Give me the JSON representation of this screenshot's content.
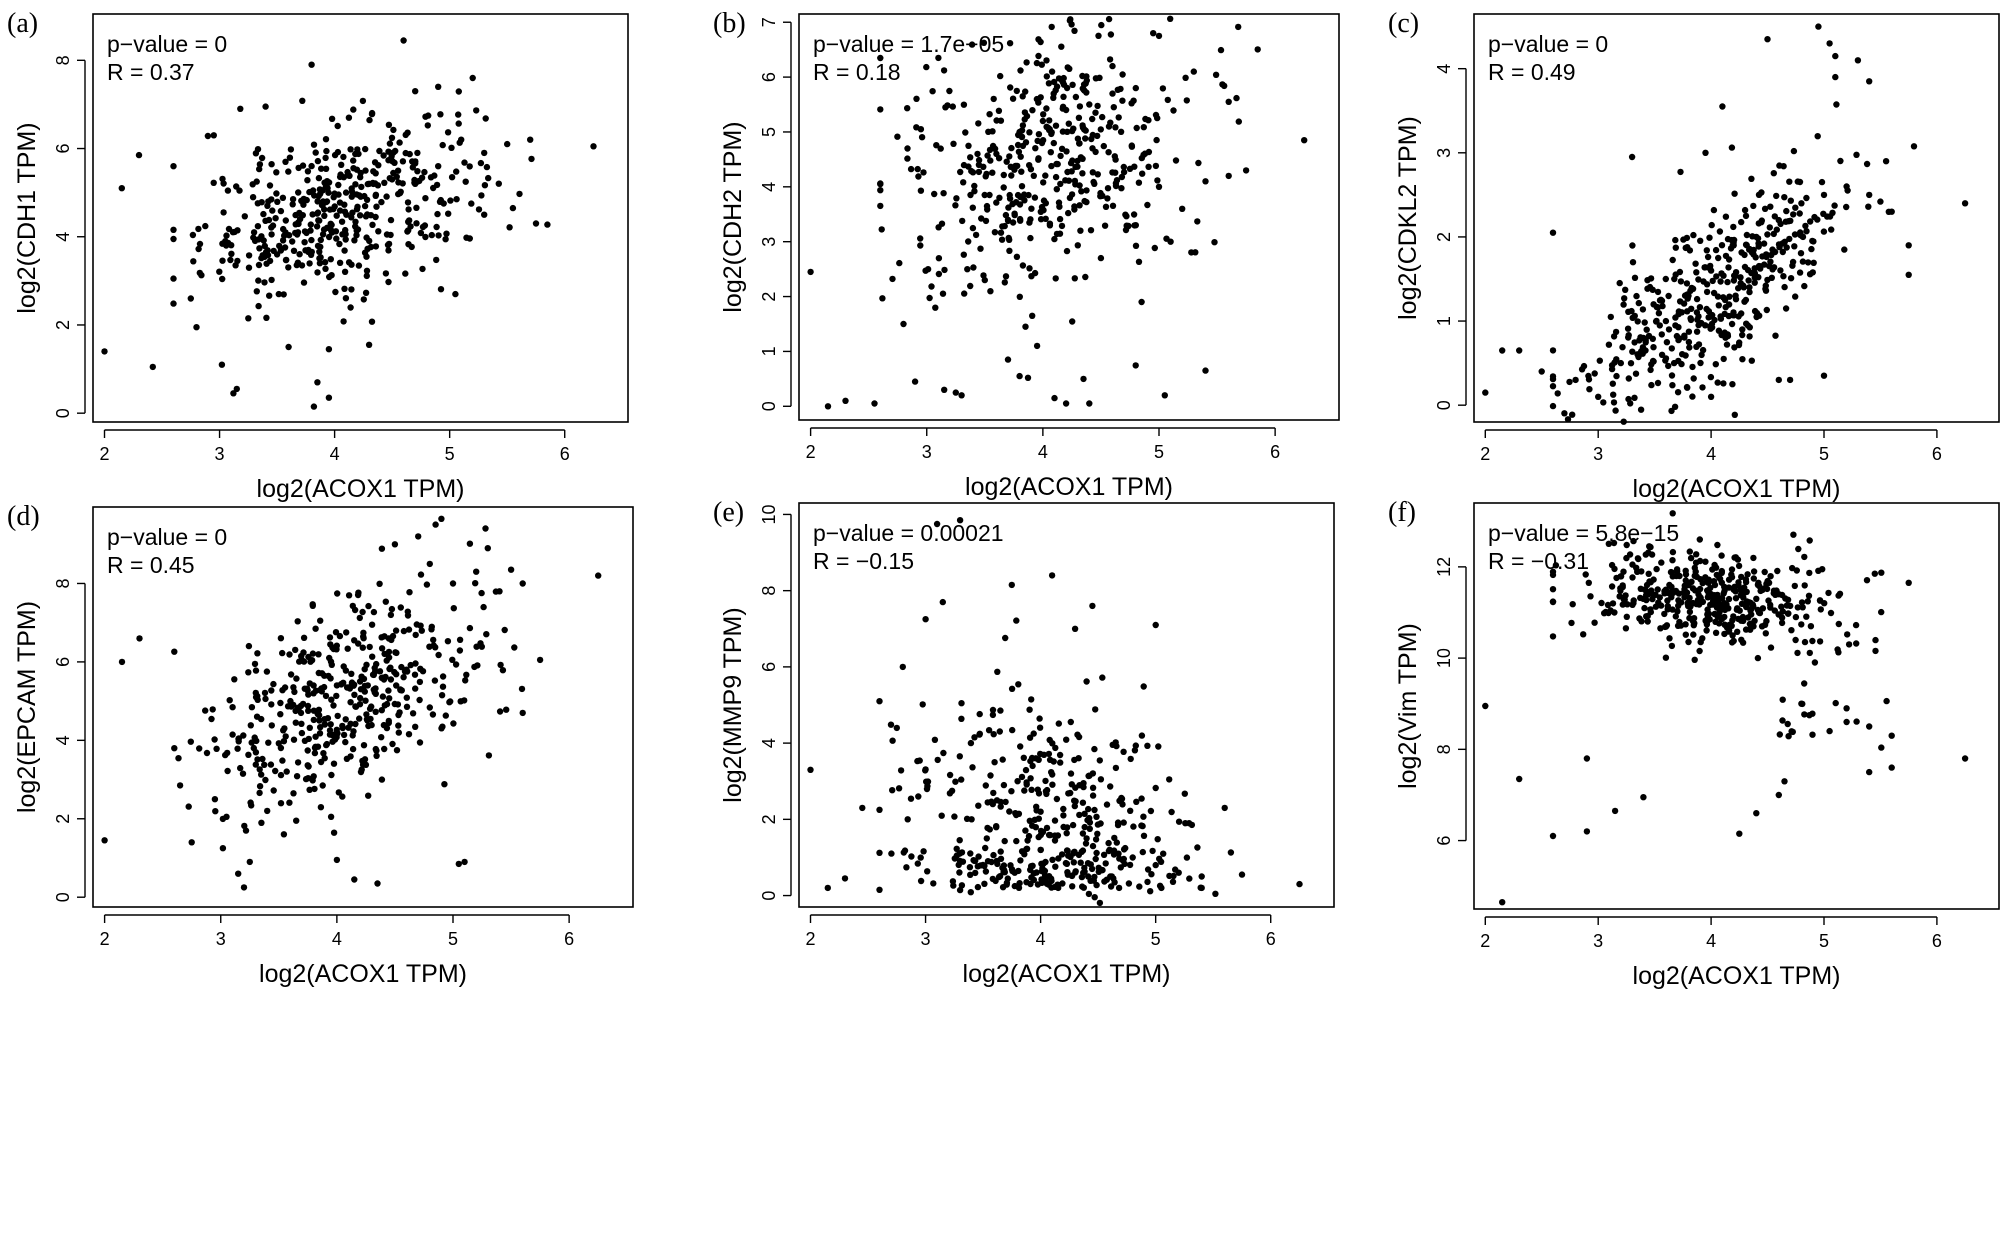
{
  "figure": {
    "title": ""
  },
  "chart_data": [
    {
      "panel": "(a)",
      "type": "scatter",
      "xlabel": "log2(ACOX1 TPM)",
      "ylabel": "log2(CDH1 TPM)",
      "xlim": [
        1.9,
        6.55
      ],
      "ylim": [
        -0.2,
        9.05
      ],
      "xticks": [
        2,
        3,
        4,
        5,
        6
      ],
      "yticks": [
        0,
        2,
        4,
        6,
        8
      ],
      "pvalue": "p−value = 0",
      "r": "R = 0.37",
      "r_value": 0.37,
      "trend": {
        "slope": 0.7,
        "intercept": 1.8,
        "noise": 0.9
      },
      "points": [
        [
          2.0,
          1.4
        ],
        [
          2.15,
          5.1
        ],
        [
          2.3,
          5.85
        ],
        [
          2.42,
          1.05
        ],
        [
          2.6,
          5.6
        ],
        [
          2.6,
          3.05
        ],
        [
          2.75,
          2.6
        ],
        [
          2.8,
          1.95
        ],
        [
          2.95,
          6.3
        ],
        [
          3.02,
          1.1
        ],
        [
          3.15,
          0.55
        ],
        [
          3.12,
          0.45
        ],
        [
          3.18,
          6.9
        ],
        [
          3.25,
          2.15
        ],
        [
          3.4,
          6.95
        ],
        [
          3.6,
          1.5
        ],
        [
          3.8,
          7.9
        ],
        [
          3.82,
          0.15
        ],
        [
          3.85,
          0.7
        ],
        [
          3.95,
          0.35
        ],
        [
          3.95,
          1.45
        ],
        [
          4.3,
          1.55
        ],
        [
          4.6,
          8.45
        ],
        [
          4.7,
          7.3
        ],
        [
          4.9,
          7.4
        ],
        [
          5.05,
          2.7
        ],
        [
          5.2,
          7.6
        ],
        [
          5.3,
          4.5
        ],
        [
          5.55,
          4.65
        ],
        [
          5.7,
          6.2
        ],
        [
          5.75,
          4.3
        ],
        [
          6.25,
          6.05
        ],
        [
          3.05,
          3.9
        ],
        [
          3.3,
          4.1
        ],
        [
          3.5,
          3.6
        ],
        [
          3.7,
          4.4
        ],
        [
          3.9,
          4.8
        ],
        [
          4.1,
          5.0
        ],
        [
          4.3,
          5.2
        ],
        [
          4.5,
          5.3
        ],
        [
          4.7,
          5.2
        ],
        [
          4.9,
          5.6
        ],
        [
          5.1,
          6.2
        ],
        [
          5.3,
          5.9
        ],
        [
          5.5,
          6.1
        ]
      ]
    },
    {
      "panel": "(b)",
      "type": "scatter",
      "xlabel": "log2(ACOX1 TPM)",
      "ylabel": "log2(CDH2 TPM)",
      "xlim": [
        1.9,
        6.55
      ],
      "ylim": [
        -0.25,
        7.15
      ],
      "xticks": [
        2,
        3,
        4,
        5,
        6
      ],
      "yticks": [
        0,
        1,
        2,
        3,
        4,
        5,
        6,
        7
      ],
      "pvalue": "p−value = 1.7e−05",
      "r": "R = 0.18",
      "r_value": 0.18,
      "trend": {
        "slope": 0.5,
        "intercept": 2.6,
        "noise": 1.2
      },
      "points": [
        [
          2.0,
          2.45
        ],
        [
          2.15,
          0.0
        ],
        [
          2.3,
          0.1
        ],
        [
          2.55,
          0.05
        ],
        [
          2.6,
          4.05
        ],
        [
          2.8,
          1.5
        ],
        [
          2.9,
          0.45
        ],
        [
          2.95,
          5.05
        ],
        [
          3.1,
          6.35
        ],
        [
          3.15,
          0.3
        ],
        [
          3.25,
          0.25
        ],
        [
          3.3,
          0.2
        ],
        [
          3.5,
          2.3
        ],
        [
          3.7,
          0.85
        ],
        [
          3.8,
          0.55
        ],
        [
          3.85,
          1.45
        ],
        [
          3.95,
          1.1
        ],
        [
          4.1,
          0.15
        ],
        [
          4.2,
          0.05
        ],
        [
          4.35,
          0.5
        ],
        [
          4.4,
          0.05
        ],
        [
          4.6,
          6.2
        ],
        [
          4.85,
          1.9
        ],
        [
          4.95,
          6.8
        ],
        [
          5.0,
          6.75
        ],
        [
          5.05,
          0.2
        ],
        [
          5.3,
          6.1
        ],
        [
          5.4,
          0.65
        ],
        [
          5.6,
          5.55
        ],
        [
          5.75,
          4.3
        ],
        [
          6.25,
          4.85
        ],
        [
          3.6,
          4.6
        ],
        [
          3.8,
          5.0
        ],
        [
          4.0,
          5.2
        ],
        [
          4.2,
          5.4
        ],
        [
          4.4,
          5.5
        ],
        [
          4.6,
          5.7
        ],
        [
          4.8,
          5.8
        ],
        [
          5.0,
          4.0
        ],
        [
          5.2,
          3.6
        ],
        [
          5.4,
          4.1
        ],
        [
          5.6,
          4.2
        ],
        [
          4.8,
          3.3
        ],
        [
          5.1,
          3.0
        ],
        [
          4.5,
          2.7
        ]
      ]
    },
    {
      "panel": "(c)",
      "type": "scatter",
      "xlabel": "log2(ACOX1 TPM)",
      "ylabel": "log2(CDKL2 TPM)",
      "xlim": [
        1.9,
        6.55
      ],
      "ylim": [
        -0.2,
        4.65
      ],
      "xticks": [
        2,
        3,
        4,
        5,
        6
      ],
      "yticks": [
        0,
        1,
        2,
        3,
        4
      ],
      "pvalue": "p−value = 0",
      "r": "R = 0.49",
      "r_value": 0.49,
      "trend": {
        "slope": 0.95,
        "intercept": -2.5,
        "noise": 0.5
      },
      "points": [
        [
          2.0,
          0.15
        ],
        [
          2.15,
          0.65
        ],
        [
          2.3,
          0.65
        ],
        [
          2.5,
          0.4
        ],
        [
          2.6,
          2.05
        ],
        [
          2.8,
          0.3
        ],
        [
          3.0,
          0.1
        ],
        [
          3.3,
          2.95
        ],
        [
          3.95,
          3.0
        ],
        [
          4.0,
          0.1
        ],
        [
          4.1,
          3.55
        ],
        [
          4.5,
          4.35
        ],
        [
          4.95,
          4.5
        ],
        [
          5.05,
          4.3
        ],
        [
          5.1,
          4.15
        ],
        [
          5.1,
          3.9
        ],
        [
          5.3,
          4.1
        ],
        [
          5.4,
          3.85
        ],
        [
          5.55,
          2.9
        ],
        [
          5.75,
          1.9
        ],
        [
          5.75,
          1.55
        ],
        [
          6.25,
          2.4
        ],
        [
          4.6,
          0.3
        ],
        [
          4.7,
          0.3
        ],
        [
          5.0,
          0.35
        ],
        [
          3.2,
          0.5
        ],
        [
          3.4,
          0.8
        ],
        [
          3.6,
          1.0
        ],
        [
          3.8,
          1.3
        ],
        [
          4.0,
          1.6
        ],
        [
          4.2,
          1.9
        ],
        [
          4.4,
          2.0
        ],
        [
          4.6,
          2.2
        ],
        [
          4.8,
          2.4
        ],
        [
          5.0,
          2.5
        ],
        [
          5.2,
          2.6
        ],
        [
          5.4,
          2.5
        ],
        [
          5.6,
          2.3
        ]
      ]
    },
    {
      "panel": "(d)",
      "type": "scatter",
      "xlabel": "log2(ACOX1 TPM)",
      "ylabel": "log2(EPCAM TPM)",
      "xlim": [
        1.9,
        6.55
      ],
      "ylim": [
        -0.25,
        9.95
      ],
      "xticks": [
        2,
        3,
        4,
        5,
        6
      ],
      "yticks": [
        0,
        2,
        4,
        6,
        8
      ],
      "pvalue": "p−value = 0",
      "r": "R = 0.45",
      "r_value": 0.45,
      "trend": {
        "slope": 1.1,
        "intercept": 0.6,
        "noise": 1.3
      },
      "points": [
        [
          2.0,
          1.45
        ],
        [
          2.15,
          6.0
        ],
        [
          2.3,
          6.6
        ],
        [
          2.6,
          3.8
        ],
        [
          2.65,
          2.85
        ],
        [
          2.75,
          1.4
        ],
        [
          2.95,
          2.5
        ],
        [
          3.05,
          2.05
        ],
        [
          3.15,
          0.6
        ],
        [
          3.2,
          0.25
        ],
        [
          3.25,
          0.9
        ],
        [
          3.4,
          2.2
        ],
        [
          3.65,
          1.95
        ],
        [
          3.95,
          2.05
        ],
        [
          4.0,
          0.95
        ],
        [
          4.15,
          0.45
        ],
        [
          4.35,
          0.35
        ],
        [
          4.85,
          9.5
        ],
        [
          4.9,
          9.65
        ],
        [
          5.05,
          0.85
        ],
        [
          5.1,
          0.9
        ],
        [
          5.3,
          8.9
        ],
        [
          5.5,
          8.35
        ],
        [
          5.6,
          4.7
        ],
        [
          5.75,
          6.05
        ],
        [
          6.25,
          8.2
        ],
        [
          3.6,
          5.0
        ],
        [
          3.8,
          5.2
        ],
        [
          4.0,
          5.4
        ],
        [
          4.2,
          5.5
        ],
        [
          4.4,
          5.6
        ],
        [
          4.6,
          5.8
        ],
        [
          4.8,
          8.5
        ],
        [
          5.0,
          8.0
        ],
        [
          5.2,
          8.3
        ],
        [
          5.4,
          7.8
        ],
        [
          5.6,
          8.0
        ],
        [
          4.5,
          9.0
        ],
        [
          4.7,
          9.2
        ]
      ]
    },
    {
      "panel": "(e)",
      "type": "scatter",
      "xlabel": "log2(ACOX1 TPM)",
      "ylabel": "log2(MMP9 TPM)",
      "xlim": [
        1.9,
        6.55
      ],
      "ylim": [
        -0.3,
        10.3
      ],
      "xticks": [
        2,
        3,
        4,
        5,
        6
      ],
      "yticks": [
        0,
        2,
        4,
        6,
        8,
        10
      ],
      "pvalue": "p−value = 0.00021",
      "r": "R = −0.15",
      "r_value": -0.15,
      "trend": {
        "slope": -0.6,
        "intercept": 4.9,
        "noise": 1.5
      },
      "points": [
        [
          2.0,
          3.3
        ],
        [
          2.15,
          0.2
        ],
        [
          2.3,
          0.45
        ],
        [
          2.45,
          2.3
        ],
        [
          2.6,
          0.15
        ],
        [
          2.6,
          2.25
        ],
        [
          2.75,
          4.4
        ],
        [
          3.0,
          7.25
        ],
        [
          3.1,
          9.75
        ],
        [
          3.15,
          7.7
        ],
        [
          3.3,
          9.85
        ],
        [
          3.75,
          8.15
        ],
        [
          4.1,
          8.4
        ],
        [
          4.3,
          7.0
        ],
        [
          4.45,
          7.6
        ],
        [
          5.0,
          7.1
        ],
        [
          5.05,
          0.2
        ],
        [
          5.4,
          0.2
        ],
        [
          5.6,
          2.3
        ],
        [
          5.75,
          0.55
        ],
        [
          6.25,
          0.3
        ],
        [
          3.4,
          2.0
        ],
        [
          3.6,
          3.5
        ],
        [
          3.8,
          3.0
        ],
        [
          4.0,
          2.2
        ],
        [
          4.2,
          1.8
        ],
        [
          4.4,
          1.5
        ],
        [
          4.6,
          1.2
        ],
        [
          4.8,
          1.0
        ],
        [
          5.0,
          0.8
        ],
        [
          5.2,
          0.6
        ],
        [
          5.4,
          0.5
        ]
      ]
    },
    {
      "panel": "(f)",
      "type": "scatter",
      "xlabel": "log2(ACOX1 TPM)",
      "ylabel": "log2(Vim TPM)",
      "xlim": [
        1.9,
        6.55
      ],
      "ylim": [
        4.5,
        13.4
      ],
      "xticks": [
        2,
        3,
        4,
        5,
        6
      ],
      "yticks": [
        6,
        8,
        10,
        12
      ],
      "pvalue": "p−value = 5.8e−15",
      "r": "R = −0.31",
      "r_value": -0.31,
      "trend": {
        "slope": -0.25,
        "intercept": 12.3,
        "noise": 0.5
      },
      "points": [
        [
          2.0,
          8.95
        ],
        [
          2.15,
          4.65
        ],
        [
          2.3,
          7.35
        ],
        [
          2.6,
          6.1
        ],
        [
          2.9,
          6.2
        ],
        [
          2.9,
          7.8
        ],
        [
          3.15,
          6.65
        ],
        [
          3.4,
          6.95
        ],
        [
          3.9,
          12.6
        ],
        [
          3.7,
          11.9
        ],
        [
          4.25,
          6.15
        ],
        [
          4.4,
          6.6
        ],
        [
          4.6,
          7.0
        ],
        [
          4.65,
          7.3
        ],
        [
          5.4,
          7.5
        ],
        [
          5.6,
          7.6
        ],
        [
          6.25,
          7.8
        ],
        [
          5.75,
          11.65
        ],
        [
          5.45,
          11.85
        ],
        [
          5.05,
          8.4
        ],
        [
          5.2,
          8.6
        ],
        [
          5.4,
          8.5
        ],
        [
          5.6,
          8.3
        ],
        [
          5.2,
          8.9
        ],
        [
          4.8,
          9.0
        ],
        [
          3.4,
          11.3
        ],
        [
          3.6,
          11.5
        ],
        [
          3.8,
          11.6
        ],
        [
          4.0,
          11.4
        ],
        [
          4.2,
          11.5
        ],
        [
          4.4,
          11.3
        ],
        [
          4.6,
          11.4
        ]
      ]
    }
  ]
}
